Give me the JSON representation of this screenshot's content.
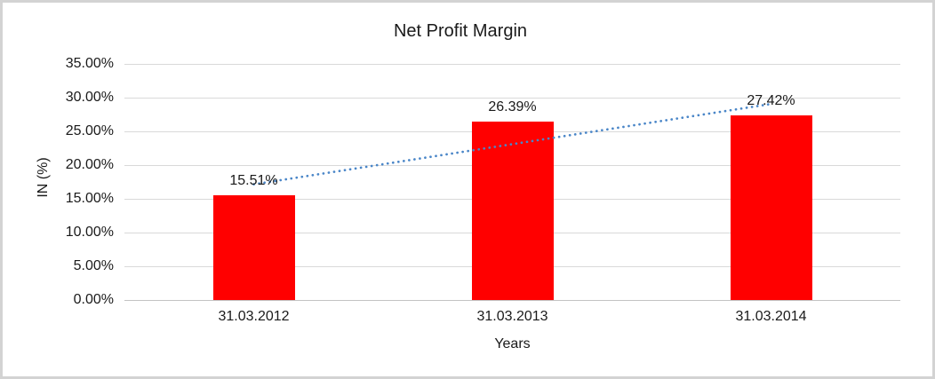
{
  "frame": {
    "border_color": "#d3d3d3",
    "background_color": "#ffffff"
  },
  "chart_data": {
    "type": "bar",
    "title": "Net Profit Margin",
    "xlabel": "Years",
    "ylabel": "IN (%)",
    "categories": [
      "31.03.2012",
      "31.03.2013",
      "31.03.2014"
    ],
    "values": [
      15.51,
      26.39,
      27.42
    ],
    "data_labels": [
      "15.51%",
      "26.39%",
      "27.42%"
    ],
    "ylim": [
      0,
      35
    ],
    "ytick_step": 5,
    "ytick_labels": [
      "0.00%",
      "5.00%",
      "10.00%",
      "15.00%",
      "20.00%",
      "25.00%",
      "30.00%",
      "35.00%"
    ],
    "grid": true,
    "legend": "none",
    "bar_color": "#ff0000",
    "gridline_color": "#d9d9d9",
    "axis_line_color": "#c3c3c3",
    "text_color": "#1a1a1a",
    "trendline": {
      "type": "linear",
      "style": "dotted",
      "color": "#4a86c8"
    }
  }
}
